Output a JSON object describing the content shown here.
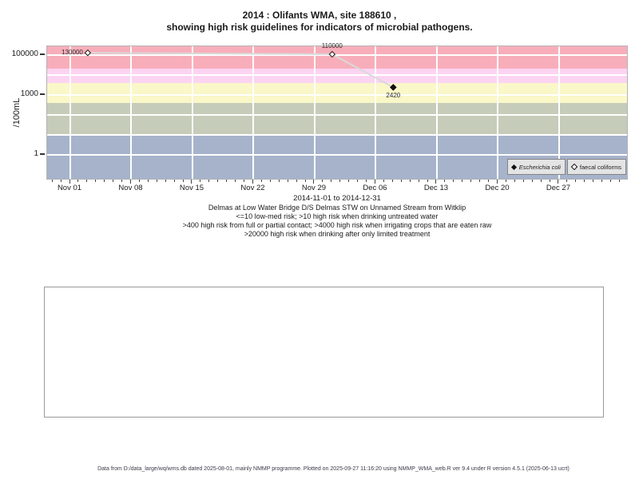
{
  "title": {
    "line1": "2014 : Olifants WMA, site 188610 ,",
    "line2": "showing high risk guidelines for indicators of microbial pathogens."
  },
  "chart_data": {
    "type": "line",
    "y_scale": "log10",
    "ylabel": "/100mL",
    "xlabel": "2014-11-01 to 2014-12-31",
    "x_domain": {
      "start": "2014-11-01",
      "end": "2014-12-31"
    },
    "y_ticks": [
      {
        "value": 100000,
        "label": "100000"
      },
      {
        "value": 1000,
        "label": "1000"
      },
      {
        "value": 1,
        "label": "1"
      }
    ],
    "x_ticks": [
      {
        "date": "2014-11-01",
        "label": "Nov 01"
      },
      {
        "date": "2014-11-08",
        "label": "Nov 08"
      },
      {
        "date": "2014-11-15",
        "label": "Nov 15"
      },
      {
        "date": "2014-11-22",
        "label": "Nov 22"
      },
      {
        "date": "2014-11-29",
        "label": "Nov 29"
      },
      {
        "date": "2014-12-06",
        "label": "Dec 06"
      },
      {
        "date": "2014-12-13",
        "label": "Dec 13"
      },
      {
        "date": "2014-12-20",
        "label": "Dec 20"
      },
      {
        "date": "2014-12-27",
        "label": "Dec 27"
      }
    ],
    "h_gridline_values": [
      1,
      10,
      100,
      1000,
      10000,
      100000
    ],
    "risk_bands": [
      {
        "min": 20000,
        "max": null,
        "color": "#f8aeba",
        "meaning": ">20000 high risk when drinking after only limited treatment"
      },
      {
        "min": 4000,
        "max": 20000,
        "color": "#fbd4f2",
        "meaning": ">4000 high risk when irrigating crops that are eaten raw"
      },
      {
        "min": 400,
        "max": 4000,
        "color": "#faf7c8",
        "meaning": ">400 high risk from full or partial contact"
      },
      {
        "min": 10,
        "max": 400,
        "color": "#c6ccba",
        "meaning": ">10 high risk when drinking untreated water"
      },
      {
        "min": null,
        "max": 10,
        "color": "#a6b3cb",
        "meaning": "<=10 low-med risk"
      }
    ],
    "series": [
      {
        "name": "faecal coliforms",
        "marker": "open-diamond",
        "line_color": "#d9d9d9",
        "points": [
          {
            "date": "2014-11-03",
            "value": 130000,
            "label": "130000",
            "label_pos": "left"
          },
          {
            "date": "2014-12-01",
            "value": 110000,
            "label": "110000",
            "label_pos": "above"
          },
          {
            "date": "2014-12-08",
            "value": 2420,
            "label": "",
            "label_pos": ""
          }
        ]
      },
      {
        "name": "Escherichia coli",
        "marker": "filled-diamond",
        "line_color": null,
        "points": [
          {
            "date": "2014-12-08",
            "value": 2420,
            "label": "2420",
            "label_pos": "below"
          }
        ]
      }
    ],
    "legend": [
      {
        "label": "Escherichia coli",
        "marker": "filled-diamond"
      },
      {
        "label": "faecal coliforms",
        "marker": "open-diamond"
      }
    ],
    "legend_position": "bottom-right"
  },
  "subtitle": {
    "lines": [
      "Delmas at Low Water Bridge D/S Delmas STW on Unnamed Stream from Witklip",
      "<=10 low-med risk; >10 high risk when drinking untreated water",
      ">400 high risk from full or partial contact; >4000 high risk when irrigating crops that are eaten raw",
      ">20000 high risk when drinking after only limited treatment"
    ]
  },
  "footer": "Data from D:/data_large/wq/wms.db dated 2025-08-01, mainly NMMP programme. Plotted on 2025-09-27 11:16:20 using NMMP_WMA_web.R ver 9.4 under R version 4.5.1 (2025-06-13 ucrt)"
}
